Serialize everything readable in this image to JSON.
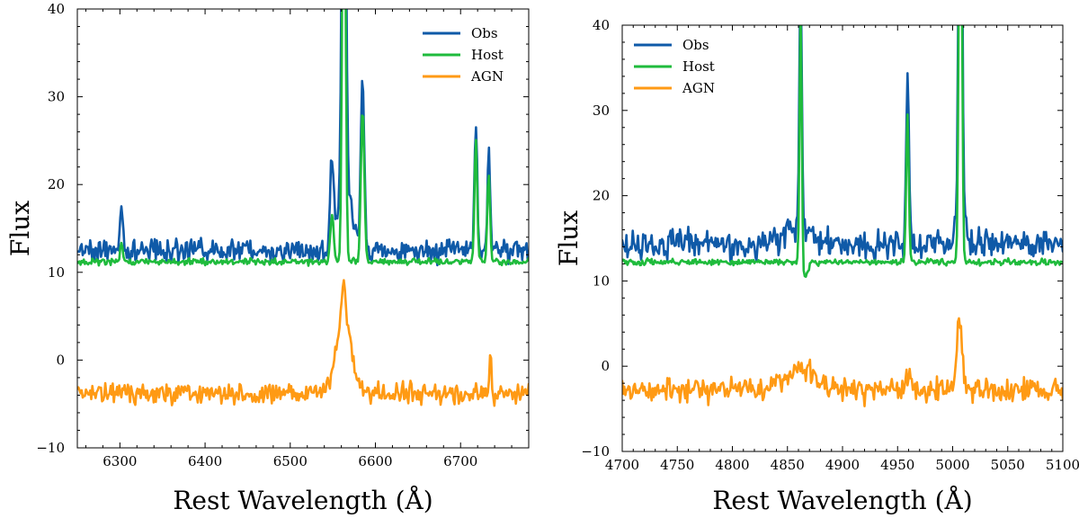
{
  "colors": {
    "obs": "#0f5aa8",
    "host": "#1fbb3c",
    "agn": "#ff9a14"
  },
  "chart_data": [
    {
      "type": "line",
      "title": "",
      "xlabel": "Rest Wavelength (Å)",
      "ylabel": "Flux",
      "xlim": [
        6250,
        6780
      ],
      "ylim": [
        -10,
        40
      ],
      "xticks": [
        6300,
        6400,
        6500,
        6600,
        6700
      ],
      "yticks": [
        -10,
        0,
        10,
        20,
        30,
        40
      ],
      "legend": {
        "position": "top-right",
        "entries": [
          "Obs",
          "Host",
          "AGN"
        ]
      },
      "series": [
        {
          "name": "Obs",
          "baseline": 12.5,
          "noise": 0.9,
          "lines": [
            {
              "center": 6302,
              "amp": 5,
              "width": 1.6
            },
            {
              "center": 6549,
              "amp": 9.5,
              "width": 2.0
            },
            {
              "center": 6563,
              "amp": 60,
              "width": 2.2
            },
            {
              "center": 6565,
              "amp": 6,
              "width": 9
            },
            {
              "center": 6585,
              "amp": 19,
              "width": 2.0
            },
            {
              "center": 6718,
              "amp": 14,
              "width": 1.6
            },
            {
              "center": 6733,
              "amp": 10.5,
              "width": 1.6
            }
          ]
        },
        {
          "name": "Host",
          "baseline": 11.2,
          "noise": 0.25,
          "lines": [
            {
              "center": 6302,
              "amp": 2,
              "width": 1.6
            },
            {
              "center": 6549,
              "amp": 5.5,
              "width": 2.0
            },
            {
              "center": 6563,
              "amp": 60,
              "width": 1.8
            },
            {
              "center": 6585,
              "amp": 17.5,
              "width": 2.0
            },
            {
              "center": 6718,
              "amp": 13.5,
              "width": 1.6
            },
            {
              "center": 6733,
              "amp": 10,
              "width": 1.6
            }
          ]
        },
        {
          "name": "AGN",
          "baseline": -3.8,
          "noise": 0.8,
          "lines": [
            {
              "center": 6563,
              "amp": 8,
              "width": 9
            },
            {
              "center": 6562,
              "amp": 5,
              "width": 2.2
            },
            {
              "center": 6735,
              "amp": 4.5,
              "width": 1.2
            }
          ]
        }
      ]
    },
    {
      "type": "line",
      "title": "",
      "xlabel": "Rest Wavelength (Å)",
      "ylabel": "Flux",
      "xlim": [
        4700,
        5100
      ],
      "ylim": [
        -10,
        40
      ],
      "xticks": [
        4700,
        4750,
        4800,
        4850,
        4900,
        4950,
        5000,
        5050,
        5100
      ],
      "yticks": [
        -10,
        0,
        10,
        20,
        30,
        40
      ],
      "legend": {
        "position": "top-left",
        "entries": [
          "Obs",
          "Host",
          "AGN"
        ]
      },
      "series": [
        {
          "name": "Obs",
          "baseline": 14.3,
          "noise": 1.2,
          "lines": [
            {
              "center": 4862,
              "amp": 30,
              "width": 1.1
            },
            {
              "center": 4862,
              "amp": 2,
              "width": 12
            },
            {
              "center": 4959,
              "amp": 20,
              "width": 1.3
            },
            {
              "center": 5007,
              "amp": 60,
              "width": 1.4
            },
            {
              "center": 5007,
              "amp": 5,
              "width": 4
            }
          ]
        },
        {
          "name": "Host",
          "baseline": 12.2,
          "noise": 0.25,
          "lines": [
            {
              "center": 4862,
              "amp": 30,
              "width": 1.0
            },
            {
              "center": 4866,
              "amp": -1.8,
              "width": 2.5
            },
            {
              "center": 4959,
              "amp": 17,
              "width": 1.2
            },
            {
              "center": 5007,
              "amp": 60,
              "width": 1.3
            }
          ]
        },
        {
          "name": "AGN",
          "baseline": -2.8,
          "noise": 1.0,
          "lines": [
            {
              "center": 4862,
              "amp": 2.5,
              "width": 14
            },
            {
              "center": 5006,
              "amp": 8,
              "width": 2.5
            },
            {
              "center": 4960,
              "amp": 1.5,
              "width": 3
            }
          ]
        }
      ]
    }
  ]
}
